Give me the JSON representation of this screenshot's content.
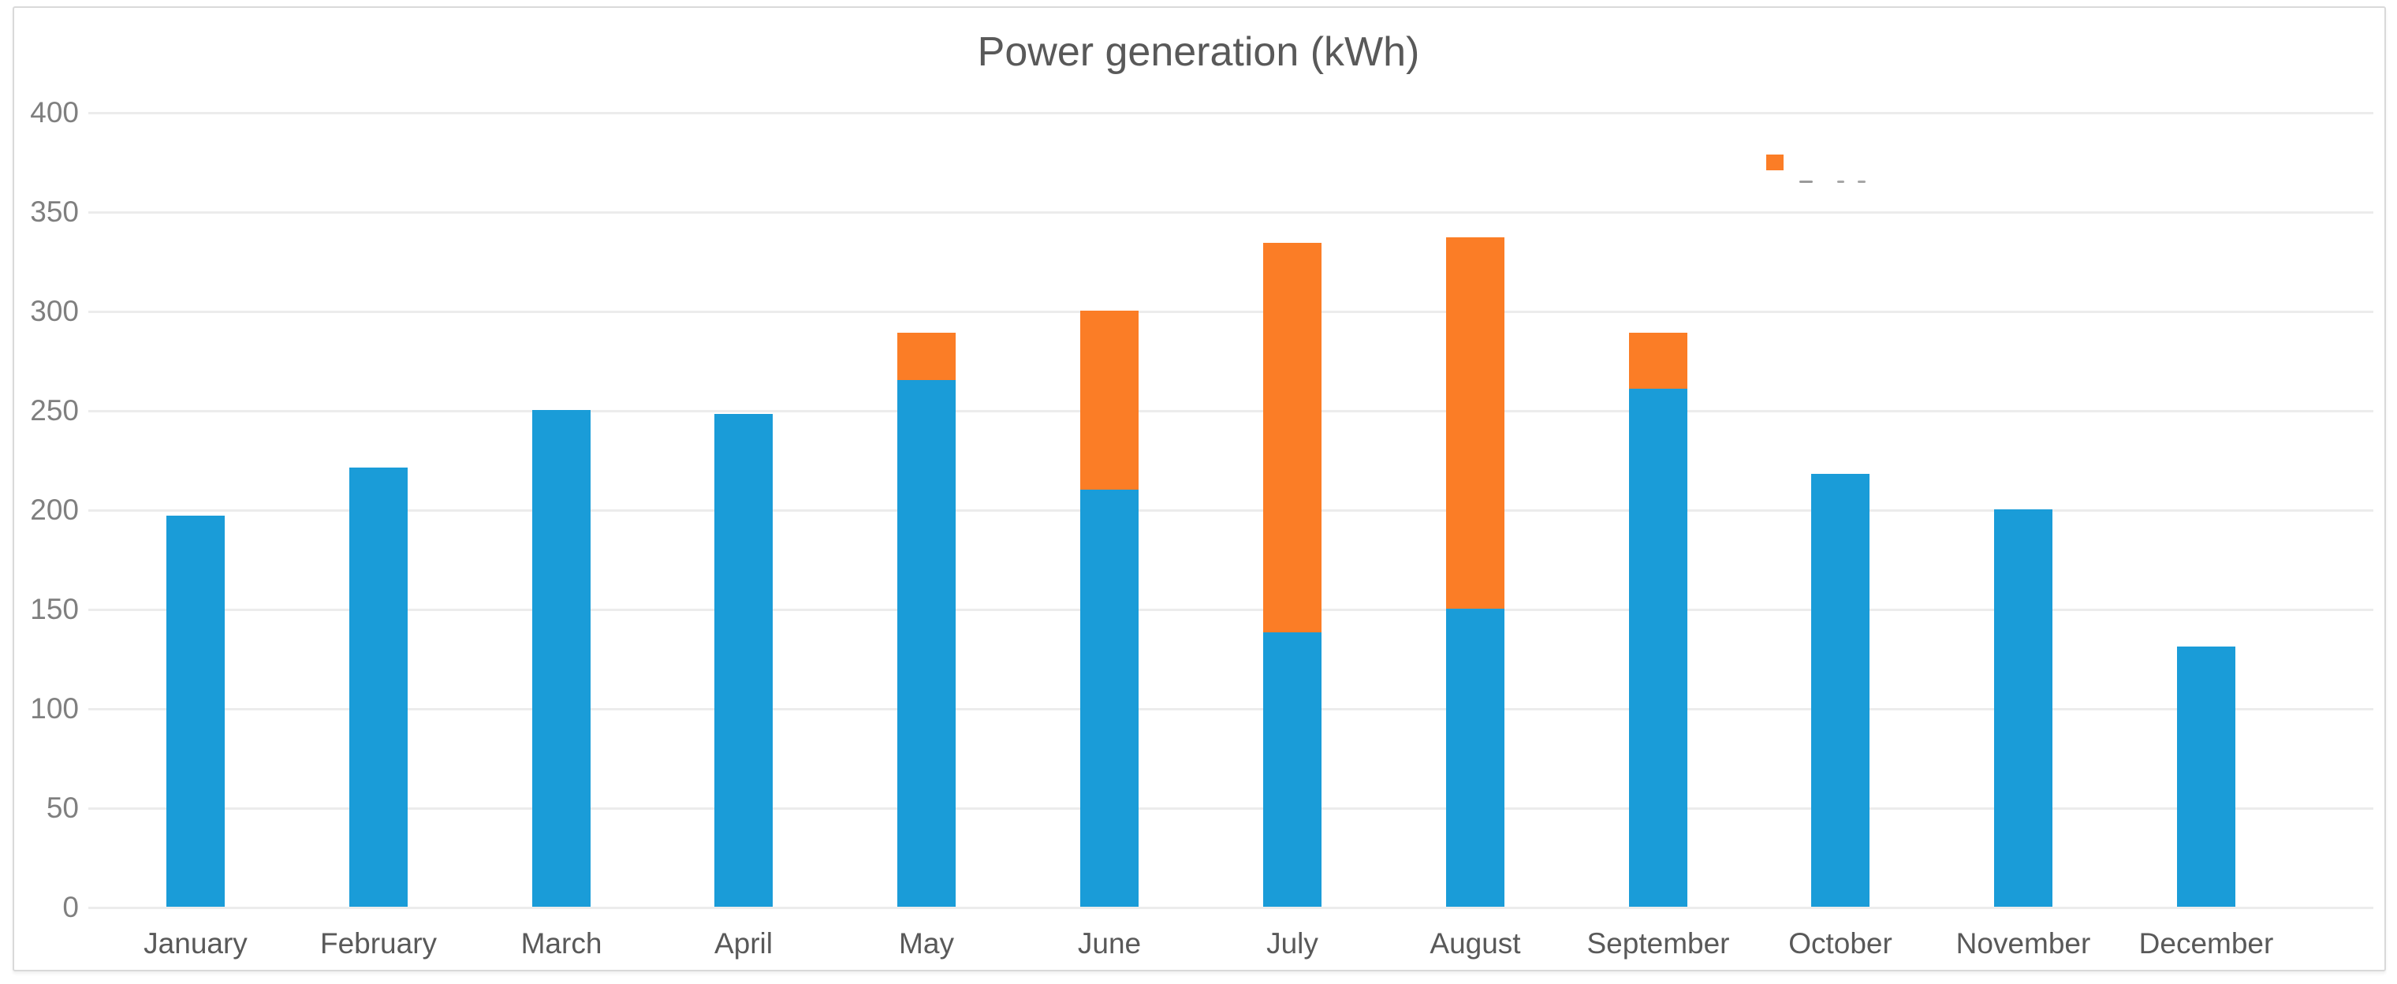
{
  "chart_data": {
    "type": "bar",
    "stacked": true,
    "title": "Power generation (kWh)",
    "categories": [
      "January",
      "February",
      "March",
      "April",
      "May",
      "June",
      "July",
      "August",
      "September",
      "October",
      "November",
      "December"
    ],
    "series": [
      {
        "name": "",
        "color": "#1a9cd8",
        "values": [
          197,
          221,
          250,
          248,
          265,
          210,
          138,
          150,
          261,
          218,
          200,
          131
        ]
      },
      {
        "name": "",
        "color": "#fb7d26",
        "values": [
          0,
          0,
          0,
          0,
          24,
          90,
          196,
          187,
          28,
          0,
          0,
          0
        ]
      }
    ],
    "totals": [
      197,
      221,
      250,
      248,
      289,
      300,
      334,
      337,
      289,
      218,
      200,
      131
    ],
    "ylim": [
      0,
      400
    ],
    "ytick_interval": 50,
    "yticks": [
      400,
      350,
      300,
      250,
      200,
      150,
      100,
      50,
      0
    ],
    "grid": true,
    "legend": {
      "position": "top-right",
      "items": [
        {
          "label": "",
          "swatch_color": "#fb7d26",
          "label_clipped": true
        }
      ]
    }
  },
  "colors": {
    "bar_blue": "#1a9cd8",
    "bar_orange": "#fb7d26",
    "gridline": "#ececec",
    "tick_label": "#7f7f7f",
    "title_text": "#595959",
    "frame_border": "#d9d9d9"
  }
}
